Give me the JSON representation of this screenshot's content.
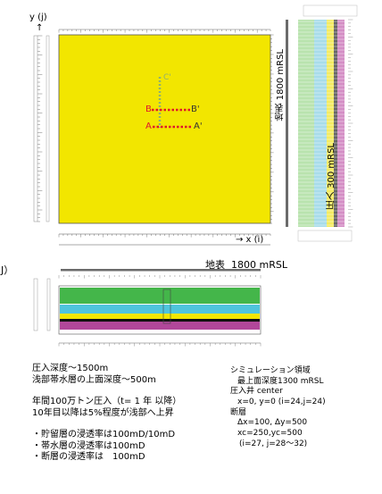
{
  "plan_view": {
    "y_axis_label": "y (j)",
    "x_axis_label": "→ x (i)",
    "section_labels": {
      "a": "A",
      "a_prime": "A'",
      "b": "B",
      "b_prime": "B'",
      "c_prime": "C'"
    },
    "colors": {
      "domain_fill": "#f2e600",
      "section_line": "#e0142a",
      "fault_c": "#8fb070"
    }
  },
  "side_strip": {
    "surface_label": "地表",
    "depth_label": "1800 mRSL",
    "injection_label": "圧入",
    "injection_depth_label": "300 mRSL"
  },
  "cross_section": {
    "surface_label": "地表",
    "surface_depth": "1800",
    "surface_unit": "mRSL",
    "layer_colors": [
      "#44b64a",
      "#4fc4dc",
      "#f2e600",
      "#111111",
      "#b1479a"
    ]
  },
  "stray_label": "J）",
  "notes_left": {
    "line1": "圧入深度～1500m",
    "line2": "浅部帯水層の上面深度～500m",
    "line3": "年間100万トン圧入（t= 1 年 以降）",
    "line4": "10年目以降は5%程度が浅部へ上昇",
    "line5": "・貯留層の浸透率は100mD/10mD",
    "line6": "・帯水層の浸透率は100mD",
    "line7": "・断層の浸透率は　100mD"
  },
  "notes_right": {
    "title": "シミュレーション領域",
    "line1": "最上面深度1300 mRSL",
    "line2": "圧入井  center",
    "line3": "x=0, y=0 (i=24,j=24)",
    "line4": "断層",
    "line5": "Δx=100, Δy=500",
    "line6": "xc=250,yc=500",
    "line7": "(i=27, j=28～32)"
  }
}
